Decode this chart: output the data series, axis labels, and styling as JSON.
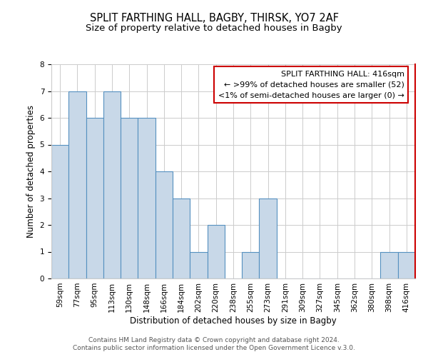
{
  "title": "SPLIT FARTHING HALL, BAGBY, THIRSK, YO7 2AF",
  "subtitle": "Size of property relative to detached houses in Bagby",
  "xlabel": "Distribution of detached houses by size in Bagby",
  "ylabel": "Number of detached properties",
  "categories": [
    "59sqm",
    "77sqm",
    "95sqm",
    "113sqm",
    "130sqm",
    "148sqm",
    "166sqm",
    "184sqm",
    "202sqm",
    "220sqm",
    "238sqm",
    "255sqm",
    "273sqm",
    "291sqm",
    "309sqm",
    "327sqm",
    "345sqm",
    "362sqm",
    "380sqm",
    "398sqm",
    "416sqm"
  ],
  "values": [
    5,
    7,
    6,
    7,
    6,
    6,
    4,
    3,
    1,
    2,
    0,
    1,
    3,
    0,
    0,
    0,
    0,
    0,
    0,
    1,
    1
  ],
  "bar_color": "#c8d8e8",
  "bar_edge_color": "#5590c0",
  "highlight_index": 20,
  "annotation_text": "SPLIT FARTHING HALL: 416sqm\n← >99% of detached houses are smaller (52)\n<1% of semi-detached houses are larger (0) →",
  "annotation_box_edge_color": "#cc0000",
  "red_line_color": "#cc0000",
  "ylim": [
    0,
    8
  ],
  "yticks": [
    0,
    1,
    2,
    3,
    4,
    5,
    6,
    7,
    8
  ],
  "footer1": "Contains HM Land Registry data © Crown copyright and database right 2024.",
  "footer2": "Contains public sector information licensed under the Open Government Licence v.3.0.",
  "background_color": "#ffffff",
  "grid_color": "#cccccc",
  "title_fontsize": 10.5,
  "subtitle_fontsize": 9.5,
  "axis_label_fontsize": 8.5,
  "tick_fontsize": 7.5,
  "annotation_fontsize": 8,
  "footer_fontsize": 6.5
}
